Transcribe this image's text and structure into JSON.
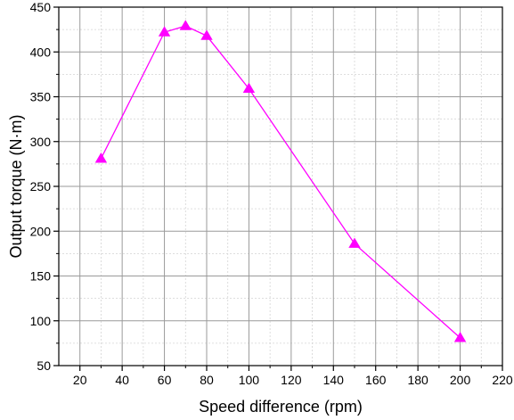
{
  "chart_data": {
    "type": "line",
    "title": "",
    "xlabel": "Speed difference (rpm)",
    "ylabel": "Output torque (N·m)",
    "xlim": [
      10,
      220
    ],
    "ylim": [
      50,
      450
    ],
    "x_ticks": [
      20,
      40,
      60,
      80,
      100,
      120,
      140,
      160,
      180,
      200,
      220
    ],
    "y_ticks": [
      50,
      100,
      150,
      200,
      250,
      300,
      350,
      400,
      450
    ],
    "grid": true,
    "series": [
      {
        "x": [
          30,
          60,
          70,
          80,
          100,
          150,
          200
        ],
        "y": [
          281,
          422,
          429,
          418,
          359,
          186,
          81
        ],
        "color": "#ff00ff",
        "marker": "triangle-up"
      }
    ]
  }
}
